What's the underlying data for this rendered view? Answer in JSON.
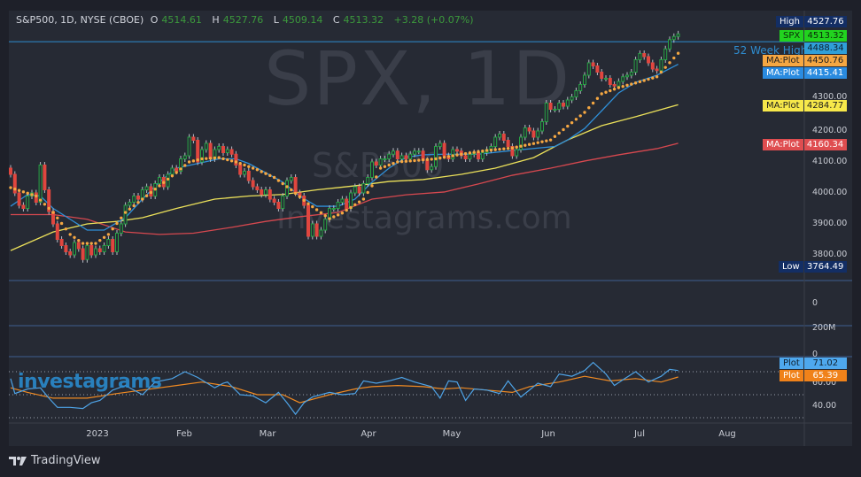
{
  "legend": {
    "symbol": "S&P500, 1D, NYSE (CBOE)",
    "o_label": "O",
    "o": "4514.61",
    "h_label": "H",
    "h": "4527.76",
    "l_label": "L",
    "l": "4509.14",
    "c_label": "C",
    "c": "4513.32",
    "change": "+3.28 (+0.07%)"
  },
  "watermark": {
    "main": "SPX, 1D",
    "sub": "S&P500",
    "site": "Investagrams.com",
    "logo": "investagrams"
  },
  "footer": {
    "brand": "TradingView",
    "icon": "tradingview-logo-icon"
  },
  "colors": {
    "up": "#26a344",
    "down": "#e0463f",
    "ma_fast": "#2f8fd8",
    "ma_dots": "#f5a742",
    "ma_mid": "#ece15a",
    "ma_slow": "#d6484f",
    "rsi": "#4ea3e6",
    "rsi_ma": "#f08a22",
    "week52": "#2e8ccf"
  },
  "price_axis": {
    "ticks": [
      "4300.00",
      "4200.00",
      "4100.00",
      "4000.00",
      "3900.00",
      "3800.00"
    ]
  },
  "pane2_axis": {
    "ticks": [
      "0"
    ]
  },
  "pane3_axis": {
    "ticks": [
      "200M",
      "0"
    ]
  },
  "rsi_axis": {
    "ticks": [
      "60.00",
      "40.00"
    ],
    "levels": [
      70,
      50,
      30
    ]
  },
  "time_axis": {
    "labels": [
      "2023",
      "Feb",
      "Mar",
      "Apr",
      "May",
      "Jun",
      "Jul",
      "Aug"
    ]
  },
  "week52_high": {
    "label": "52 Week High",
    "value": "4488.34"
  },
  "tags": [
    {
      "name": "high",
      "k": "High",
      "v": "4527.76",
      "bg": "#132e64",
      "fg": "#ffffff"
    },
    {
      "name": "spx",
      "k": "SPX",
      "v": "4513.32",
      "bg": "#22d31f",
      "fg": "#0b2a0b"
    },
    {
      "name": "week52",
      "k": "",
      "v": "4488.34",
      "bg": "#2f9fd8",
      "fg": "#10202e"
    },
    {
      "name": "ma-orange",
      "k": "MA:Plot",
      "v": "4450.76",
      "bg": "#f5a742",
      "fg": "#1e1e1e"
    },
    {
      "name": "ma-blue",
      "k": "MA:Plot",
      "v": "4415.41",
      "bg": "#2a8be0",
      "fg": "#ffffff"
    },
    {
      "name": "ma-yellow",
      "k": "MA:Plot",
      "v": "4284.77",
      "bg": "#f7e84a",
      "fg": "#1e1e1e"
    },
    {
      "name": "ma-red",
      "k": "MA:Plot",
      "v": "4160.34",
      "bg": "#df4d50",
      "fg": "#ffffff"
    },
    {
      "name": "low",
      "k": "Low",
      "v": "3764.49",
      "bg": "#132e64",
      "fg": "#ffffff"
    },
    {
      "name": "rsi",
      "k": "Plot",
      "v": "71.02",
      "bg": "#4ea8ee",
      "fg": "#10202e"
    },
    {
      "name": "rsi-ma",
      "k": "Plot",
      "v": "65.39",
      "bg": "#f0821a",
      "fg": "#ffffff"
    }
  ],
  "chart_data": {
    "type": "candlestick",
    "title": "S&P500, 1D, NYSE (CBOE)",
    "x_range": [
      "2022-12",
      "2023-08"
    ],
    "ylim": [
      3740,
      4560
    ],
    "close": [
      4060,
      4000,
      3960,
      3950,
      3990,
      4000,
      3970,
      4090,
      4010,
      3940,
      3900,
      3850,
      3830,
      3810,
      3800,
      3840,
      3820,
      3785,
      3830,
      3800,
      3820,
      3810,
      3830,
      3850,
      3810,
      3870,
      3900,
      3960,
      3970,
      3990,
      3980,
      4010,
      4020,
      3990,
      4030,
      4050,
      4020,
      4060,
      4080,
      4070,
      4110,
      4120,
      4180,
      4170,
      4100,
      4140,
      4160,
      4110,
      4140,
      4150,
      4130,
      4140,
      4125,
      4090,
      4060,
      4070,
      4040,
      4020,
      4010,
      3995,
      4010,
      3980,
      3970,
      3950,
      3990,
      4040,
      4050,
      4000,
      3990,
      3960,
      3860,
      3900,
      3860,
      3880,
      3915,
      3950,
      3950,
      3970,
      3980,
      3950,
      4000,
      4020,
      4000,
      4030,
      4050,
      4100,
      4090,
      4110,
      4110,
      4125,
      4135,
      4110,
      4120,
      4110,
      4125,
      4135,
      4135,
      4105,
      4075,
      4085,
      4150,
      4160,
      4120,
      4110,
      4140,
      4135,
      4120,
      4110,
      4125,
      4130,
      4110,
      4130,
      4140,
      4150,
      4180,
      4190,
      4170,
      4150,
      4120,
      4140,
      4180,
      4210,
      4200,
      4180,
      4200,
      4230,
      4290,
      4270,
      4270,
      4290,
      4280,
      4300,
      4310,
      4330,
      4350,
      4380,
      4420,
      4410,
      4390,
      4370,
      4370,
      4350,
      4345,
      4360,
      4375,
      4380,
      4390,
      4430,
      4450,
      4440,
      4420,
      4400,
      4395,
      4430,
      4465,
      4495,
      4505,
      4513.32
    ],
    "ma_blue": [
      [
        0,
        3957
      ],
      [
        4,
        3995
      ],
      [
        7,
        3990
      ],
      [
        10,
        3950
      ],
      [
        14,
        3915
      ],
      [
        18,
        3880
      ],
      [
        22,
        3880
      ],
      [
        27,
        3920
      ],
      [
        31,
        3980
      ],
      [
        35,
        4035
      ],
      [
        39,
        4080
      ],
      [
        44,
        4095
      ],
      [
        49,
        4110
      ],
      [
        53,
        4110
      ],
      [
        56,
        4095
      ],
      [
        60,
        4065
      ],
      [
        64,
        4035
      ],
      [
        68,
        3990
      ],
      [
        72,
        3957
      ],
      [
        77,
        3957
      ],
      [
        81,
        3980
      ],
      [
        85,
        4035
      ],
      [
        89,
        4080
      ],
      [
        93,
        4115
      ],
      [
        97,
        4123
      ],
      [
        102,
        4125
      ],
      [
        110,
        4125
      ],
      [
        118,
        4137
      ],
      [
        125,
        4146
      ],
      [
        128,
        4150
      ],
      [
        131,
        4171
      ],
      [
        135,
        4208
      ],
      [
        139,
        4265
      ],
      [
        143,
        4323
      ],
      [
        147,
        4357
      ],
      [
        152,
        4380
      ],
      [
        157,
        4415.41
      ]
    ],
    "ma_yellow": [
      [
        0,
        3814
      ],
      [
        10,
        3874
      ],
      [
        18,
        3900
      ],
      [
        25,
        3908
      ],
      [
        31,
        3920
      ],
      [
        39,
        3950
      ],
      [
        48,
        3980
      ],
      [
        56,
        3990
      ],
      [
        64,
        3995
      ],
      [
        72,
        4010
      ],
      [
        81,
        4023
      ],
      [
        89,
        4037
      ],
      [
        97,
        4043
      ],
      [
        106,
        4060
      ],
      [
        114,
        4080
      ],
      [
        123,
        4114
      ],
      [
        131,
        4171
      ],
      [
        139,
        4217
      ],
      [
        147,
        4246
      ],
      [
        157,
        4284.77
      ]
    ],
    "ma_red": [
      [
        0,
        3930
      ],
      [
        10,
        3930
      ],
      [
        18,
        3915
      ],
      [
        27,
        3874
      ],
      [
        35,
        3866
      ],
      [
        43,
        3870
      ],
      [
        52,
        3889
      ],
      [
        60,
        3908
      ],
      [
        68,
        3923
      ],
      [
        77,
        3937
      ],
      [
        85,
        3980
      ],
      [
        93,
        3994
      ],
      [
        102,
        4003
      ],
      [
        110,
        4029
      ],
      [
        118,
        4057
      ],
      [
        127,
        4080
      ],
      [
        135,
        4103
      ],
      [
        143,
        4123
      ],
      [
        152,
        4143
      ],
      [
        157,
        4160.34
      ]
    ],
    "ma_orange_dots": [
      [
        0,
        4017
      ],
      [
        6,
        3990
      ],
      [
        10,
        3937
      ],
      [
        14,
        3866
      ],
      [
        17,
        3837
      ],
      [
        20,
        3837
      ],
      [
        23,
        3866
      ],
      [
        27,
        3937
      ],
      [
        31,
        3980
      ],
      [
        35,
        4023
      ],
      [
        39,
        4066
      ],
      [
        42,
        4100
      ],
      [
        45,
        4110
      ],
      [
        49,
        4114
      ],
      [
        53,
        4100
      ],
      [
        58,
        4075
      ],
      [
        62,
        4050
      ],
      [
        66,
        4010
      ],
      [
        70,
        3965
      ],
      [
        75,
        3917
      ],
      [
        78,
        3935
      ],
      [
        83,
        3980
      ],
      [
        85,
        4023
      ],
      [
        87,
        4080
      ],
      [
        91,
        4100
      ],
      [
        100,
        4110
      ],
      [
        106,
        4125
      ],
      [
        112,
        4137
      ],
      [
        118,
        4145
      ],
      [
        127,
        4171
      ],
      [
        135,
        4260
      ],
      [
        139,
        4320
      ],
      [
        143,
        4340
      ],
      [
        147,
        4355
      ],
      [
        152,
        4375
      ],
      [
        157,
        4450.76
      ]
    ],
    "rsi": [
      [
        0,
        64
      ],
      [
        1,
        51
      ],
      [
        4,
        55
      ],
      [
        7,
        56
      ],
      [
        9,
        47
      ],
      [
        11,
        39
      ],
      [
        14,
        39
      ],
      [
        17,
        38
      ],
      [
        19,
        43
      ],
      [
        21,
        45
      ],
      [
        24,
        54
      ],
      [
        27,
        58
      ],
      [
        31,
        50
      ],
      [
        34,
        61
      ],
      [
        38,
        64
      ],
      [
        41,
        70
      ],
      [
        44,
        65
      ],
      [
        48,
        56
      ],
      [
        50,
        60
      ],
      [
        51,
        61
      ],
      [
        54,
        50
      ],
      [
        57,
        49
      ],
      [
        60,
        43
      ],
      [
        63,
        52
      ],
      [
        65,
        43
      ],
      [
        67,
        33
      ],
      [
        69,
        43
      ],
      [
        71,
        48
      ],
      [
        75,
        52
      ],
      [
        78,
        50
      ],
      [
        81,
        51
      ],
      [
        83,
        62
      ],
      [
        86,
        60
      ],
      [
        89,
        62
      ],
      [
        92,
        65
      ],
      [
        95,
        61
      ],
      [
        99,
        57
      ],
      [
        101,
        47
      ],
      [
        103,
        62
      ],
      [
        105,
        61
      ],
      [
        107,
        45
      ],
      [
        109,
        55
      ],
      [
        112,
        54
      ],
      [
        115,
        51
      ],
      [
        117,
        62
      ],
      [
        120,
        48
      ],
      [
        124,
        60
      ],
      [
        127,
        57
      ],
      [
        129,
        68
      ],
      [
        132,
        66
      ],
      [
        135,
        71
      ],
      [
        137,
        78
      ],
      [
        140,
        68
      ],
      [
        142,
        58
      ],
      [
        144,
        63
      ],
      [
        147,
        70
      ],
      [
        150,
        61
      ],
      [
        153,
        66
      ],
      [
        155,
        72
      ],
      [
        157,
        71.02
      ]
    ],
    "rsi_ma": [
      [
        0,
        56
      ],
      [
        4,
        52
      ],
      [
        10,
        47
      ],
      [
        18,
        47
      ],
      [
        25,
        51
      ],
      [
        31,
        54
      ],
      [
        39,
        58
      ],
      [
        45,
        61
      ],
      [
        52,
        57
      ],
      [
        58,
        50
      ],
      [
        64,
        50
      ],
      [
        68,
        43
      ],
      [
        75,
        50
      ],
      [
        81,
        55
      ],
      [
        85,
        57
      ],
      [
        91,
        58
      ],
      [
        97,
        57
      ],
      [
        102,
        55
      ],
      [
        106,
        56
      ],
      [
        112,
        54
      ],
      [
        118,
        52
      ],
      [
        122,
        57
      ],
      [
        129,
        61
      ],
      [
        135,
        66
      ],
      [
        141,
        62
      ],
      [
        147,
        64
      ],
      [
        153,
        61
      ],
      [
        157,
        65.39
      ]
    ],
    "rsi_ylim": [
      25,
      83
    ],
    "grid": false,
    "legend": "top-left"
  }
}
